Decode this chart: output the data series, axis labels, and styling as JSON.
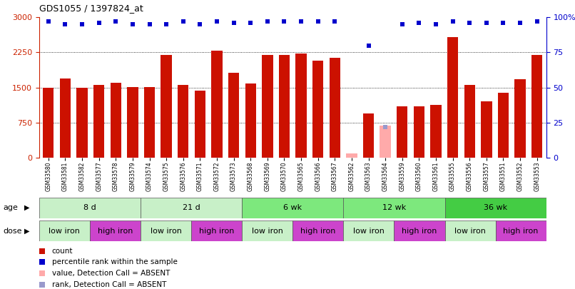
{
  "title": "GDS1055 / 1397824_at",
  "samples": [
    "GSM33580",
    "GSM33581",
    "GSM33582",
    "GSM33577",
    "GSM33578",
    "GSM33579",
    "GSM33574",
    "GSM33575",
    "GSM33576",
    "GSM33571",
    "GSM33572",
    "GSM33573",
    "GSM33568",
    "GSM33569",
    "GSM33570",
    "GSM33565",
    "GSM33566",
    "GSM33567",
    "GSM33562",
    "GSM33563",
    "GSM33564",
    "GSM33559",
    "GSM33560",
    "GSM33561",
    "GSM33555",
    "GSM33556",
    "GSM33557",
    "GSM33551",
    "GSM33552",
    "GSM33553"
  ],
  "counts": [
    1490,
    1690,
    1500,
    1550,
    1600,
    1510,
    1510,
    2190,
    1550,
    1430,
    2280,
    1820,
    1580,
    2190,
    2190,
    2220,
    2070,
    2130,
    null,
    950,
    null,
    1100,
    1100,
    1120,
    2570,
    1550,
    1200,
    1380,
    1680,
    2190
  ],
  "absent_counts": [
    null,
    null,
    null,
    null,
    null,
    null,
    null,
    null,
    null,
    null,
    null,
    null,
    null,
    null,
    null,
    null,
    null,
    null,
    80,
    null,
    680,
    null,
    null,
    null,
    null,
    null,
    null,
    null,
    null,
    null
  ],
  "percentile_ranks": [
    97,
    95,
    95,
    96,
    97,
    95,
    95,
    95,
    97,
    95,
    97,
    96,
    96,
    97,
    97,
    97,
    97,
    97,
    null,
    80,
    null,
    95,
    96,
    95,
    97,
    96,
    96,
    96,
    96,
    97
  ],
  "absent_ranks": [
    null,
    null,
    null,
    null,
    null,
    null,
    null,
    null,
    null,
    null,
    null,
    null,
    null,
    null,
    null,
    null,
    null,
    null,
    null,
    null,
    22,
    null,
    null,
    null,
    null,
    null,
    null,
    null,
    null,
    null
  ],
  "age_groups": [
    {
      "label": "8 d",
      "start": 0,
      "end": 6,
      "color": "#c8f0c8"
    },
    {
      "label": "21 d",
      "start": 6,
      "end": 12,
      "color": "#c8f0c8"
    },
    {
      "label": "6 wk",
      "start": 12,
      "end": 18,
      "color": "#7de87d"
    },
    {
      "label": "12 wk",
      "start": 18,
      "end": 24,
      "color": "#7de87d"
    },
    {
      "label": "36 wk",
      "start": 24,
      "end": 30,
      "color": "#44cc44"
    }
  ],
  "dose_groups": [
    {
      "label": "low iron",
      "start": 0,
      "end": 3,
      "color": "#c8f0c8"
    },
    {
      "label": "high iron",
      "start": 3,
      "end": 6,
      "color": "#cc44cc"
    },
    {
      "label": "low iron",
      "start": 6,
      "end": 9,
      "color": "#c8f0c8"
    },
    {
      "label": "high iron",
      "start": 9,
      "end": 12,
      "color": "#cc44cc"
    },
    {
      "label": "low iron",
      "start": 12,
      "end": 15,
      "color": "#c8f0c8"
    },
    {
      "label": "high iron",
      "start": 15,
      "end": 18,
      "color": "#cc44cc"
    },
    {
      "label": "low iron",
      "start": 18,
      "end": 21,
      "color": "#c8f0c8"
    },
    {
      "label": "high iron",
      "start": 21,
      "end": 24,
      "color": "#cc44cc"
    },
    {
      "label": "low iron",
      "start": 24,
      "end": 27,
      "color": "#c8f0c8"
    },
    {
      "label": "high iron",
      "start": 27,
      "end": 30,
      "color": "#cc44cc"
    }
  ],
  "bar_color": "#cc1100",
  "absent_bar_color": "#ffaaaa",
  "rank_color": "#0000cc",
  "absent_rank_color": "#9999cc",
  "ylim_left": [
    0,
    3000
  ],
  "ylim_right": [
    0,
    100
  ],
  "yticks_left": [
    0,
    750,
    1500,
    2250,
    3000
  ],
  "yticks_right": [
    0,
    25,
    50,
    75,
    100
  ],
  "bg_color": "#ffffff",
  "legend_items": [
    {
      "color": "#cc1100",
      "label": "count"
    },
    {
      "color": "#0000cc",
      "label": "percentile rank within the sample"
    },
    {
      "color": "#ffaaaa",
      "label": "value, Detection Call = ABSENT"
    },
    {
      "color": "#9999cc",
      "label": "rank, Detection Call = ABSENT"
    }
  ]
}
